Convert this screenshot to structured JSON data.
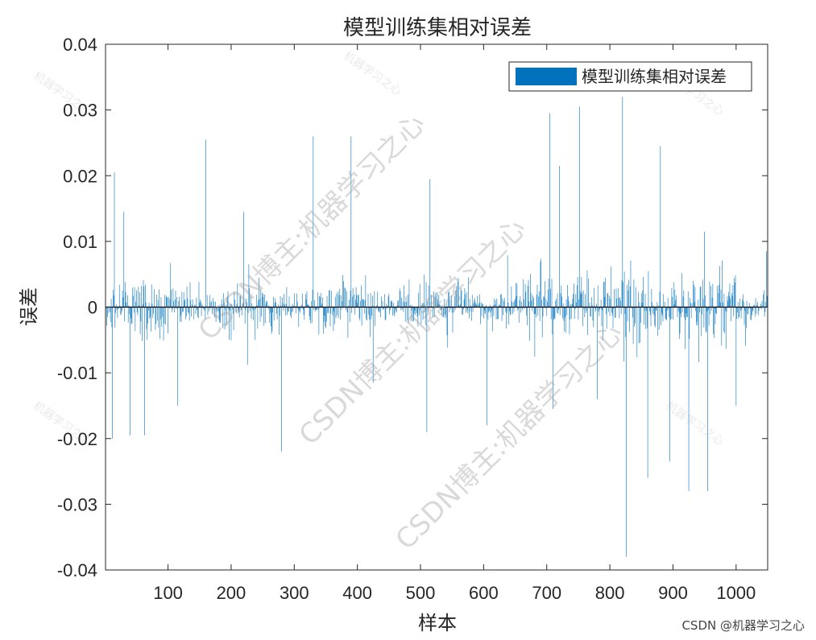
{
  "chart_data": {
    "type": "bar",
    "title": "模型训练集相对误差",
    "xlabel": "样本",
    "ylabel": "误差",
    "xlim": [
      1,
      1050
    ],
    "ylim": [
      -0.04,
      0.04
    ],
    "xticks": [
      100,
      200,
      300,
      400,
      500,
      600,
      700,
      800,
      900,
      1000
    ],
    "yticks": [
      -0.04,
      -0.03,
      -0.02,
      -0.01,
      0,
      0.01,
      0.02,
      0.03,
      0.04
    ],
    "ytick_labels": [
      "-0.04",
      "-0.03",
      "-0.02",
      "-0.01",
      "0",
      "0.01",
      "0.02",
      "0.03",
      "0.04"
    ],
    "grid": false,
    "legend_position": "top-right",
    "series": [
      {
        "name": "模型训练集相对误差",
        "color": "#0072BD",
        "n_points": 1050,
        "peaks": [
          {
            "x": 15,
            "y": 0.0205
          },
          {
            "x": 12,
            "y": -0.02
          },
          {
            "x": 30,
            "y": 0.0145
          },
          {
            "x": 40,
            "y": -0.0195
          },
          {
            "x": 63,
            "y": -0.0195
          },
          {
            "x": 115,
            "y": -0.015
          },
          {
            "x": 160,
            "y": 0.0255
          },
          {
            "x": 220,
            "y": 0.0145
          },
          {
            "x": 280,
            "y": -0.022
          },
          {
            "x": 330,
            "y": 0.026
          },
          {
            "x": 390,
            "y": 0.026
          },
          {
            "x": 425,
            "y": -0.0115
          },
          {
            "x": 510,
            "y": -0.019
          },
          {
            "x": 515,
            "y": 0.0195
          },
          {
            "x": 605,
            "y": -0.018
          },
          {
            "x": 705,
            "y": 0.0295
          },
          {
            "x": 710,
            "y": -0.0155
          },
          {
            "x": 720,
            "y": 0.0215
          },
          {
            "x": 752,
            "y": 0.0305
          },
          {
            "x": 780,
            "y": -0.014
          },
          {
            "x": 820,
            "y": 0.032
          },
          {
            "x": 826,
            "y": -0.038
          },
          {
            "x": 860,
            "y": -0.026
          },
          {
            "x": 880,
            "y": 0.0245
          },
          {
            "x": 895,
            "y": -0.0235
          },
          {
            "x": 925,
            "y": -0.028
          },
          {
            "x": 950,
            "y": 0.0115
          },
          {
            "x": 955,
            "y": -0.028
          },
          {
            "x": 1000,
            "y": -0.015
          },
          {
            "x": 1048,
            "y": 0.0085
          }
        ]
      }
    ]
  },
  "watermarks": {
    "main": "CSDN博主:机器学习之心",
    "small": "机器学习之心"
  },
  "credit": "CSDN @机器学习之心"
}
